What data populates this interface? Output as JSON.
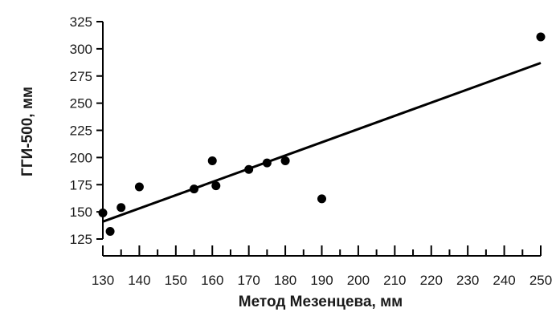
{
  "chart_data": {
    "type": "scatter",
    "title": "",
    "xlabel": "Метод Мезенцева, мм",
    "ylabel": "ГГИ-500, мм",
    "xlim": [
      130,
      250
    ],
    "ylim": [
      125,
      325
    ],
    "x_ticks": [
      130,
      140,
      150,
      160,
      170,
      180,
      190,
      200,
      210,
      220,
      230,
      240,
      250
    ],
    "x_minor_step": 5,
    "y_ticks": [
      125,
      150,
      175,
      200,
      225,
      250,
      275,
      300,
      325
    ],
    "grid": false,
    "legend": "none",
    "series": [
      {
        "marker": "filled-circle",
        "color": "#000000",
        "points": [
          {
            "x": 130,
            "y": 149
          },
          {
            "x": 132,
            "y": 132
          },
          {
            "x": 135,
            "y": 154
          },
          {
            "x": 140,
            "y": 173
          },
          {
            "x": 155,
            "y": 171
          },
          {
            "x": 160,
            "y": 197
          },
          {
            "x": 161,
            "y": 174
          },
          {
            "x": 170,
            "y": 189
          },
          {
            "x": 175,
            "y": 195
          },
          {
            "x": 180,
            "y": 197
          },
          {
            "x": 190,
            "y": 162
          },
          {
            "x": 250,
            "y": 311
          }
        ]
      }
    ],
    "trendline": {
      "type": "linear",
      "color": "#000000",
      "points": [
        {
          "x": 130,
          "y": 141
        },
        {
          "x": 250,
          "y": 287
        }
      ]
    }
  }
}
